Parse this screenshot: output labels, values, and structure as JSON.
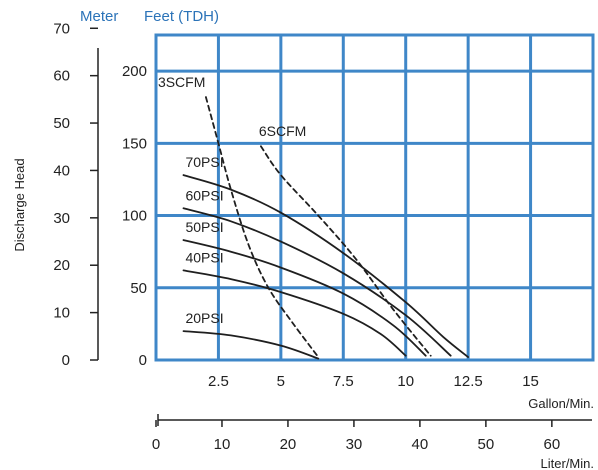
{
  "chart_data": {
    "type": "line",
    "header_labels": {
      "meter": "Meter",
      "feet": "Feet (TDH)"
    },
    "ylabel": "Discharge Head",
    "xlabel_primary": "Gallon/Min.",
    "xlabel_secondary": "Liter/Min.",
    "meter_ticks": [
      0,
      10,
      20,
      30,
      40,
      50,
      60,
      70
    ],
    "feet_ticks": [
      0,
      50,
      100,
      150,
      200
    ],
    "gpm_ticks": [
      "2.5",
      "5",
      "7.5",
      "10",
      "12.5",
      "15"
    ],
    "lpm_ticks": [
      0,
      10,
      20,
      30,
      40,
      50,
      60
    ],
    "xlim_gpm": [
      0,
      17.5
    ],
    "ylim_feet": [
      0,
      225
    ],
    "grid": true,
    "series": [
      {
        "name": "70PSI",
        "style": "solid",
        "points": [
          [
            1.1,
            128
          ],
          [
            3,
            118
          ],
          [
            5,
            102
          ],
          [
            7.5,
            74
          ],
          [
            10,
            40
          ],
          [
            11.5,
            16
          ],
          [
            12.5,
            2
          ]
        ]
      },
      {
        "name": "60PSI",
        "style": "solid",
        "points": [
          [
            1.1,
            105
          ],
          [
            3,
            96
          ],
          [
            5,
            82
          ],
          [
            7.5,
            60
          ],
          [
            10,
            31
          ],
          [
            11.8,
            3
          ]
        ]
      },
      {
        "name": "50PSI",
        "style": "solid",
        "points": [
          [
            1.1,
            83
          ],
          [
            3,
            75
          ],
          [
            5,
            64
          ],
          [
            7.5,
            46
          ],
          [
            9.5,
            24
          ],
          [
            10.8,
            3
          ]
        ]
      },
      {
        "name": "40PSI",
        "style": "solid",
        "points": [
          [
            1.1,
            62
          ],
          [
            3,
            56
          ],
          [
            5,
            47
          ],
          [
            7.5,
            32
          ],
          [
            9,
            18
          ],
          [
            10,
            3
          ]
        ]
      },
      {
        "name": "20PSI",
        "style": "solid",
        "points": [
          [
            1.1,
            20
          ],
          [
            3,
            17
          ],
          [
            5,
            10
          ],
          [
            6.5,
            1
          ]
        ]
      },
      {
        "name": "3SCFM",
        "style": "dashed",
        "points": [
          [
            2,
            182
          ],
          [
            2.5,
            150
          ],
          [
            3,
            118
          ],
          [
            3.7,
            80
          ],
          [
            4.5,
            50
          ],
          [
            5.5,
            25
          ],
          [
            6.5,
            2
          ]
        ]
      },
      {
        "name": "6SCFM",
        "style": "dashed",
        "points": [
          [
            4.2,
            148
          ],
          [
            5,
            128
          ],
          [
            6.5,
            100
          ],
          [
            8,
            70
          ],
          [
            9.5,
            35
          ],
          [
            11,
            3
          ]
        ]
      }
    ]
  },
  "colors": {
    "grid": "#3f87c8",
    "axis_blue": "#2b73b8",
    "curve": "#1f1f1f",
    "text": "#222222"
  }
}
